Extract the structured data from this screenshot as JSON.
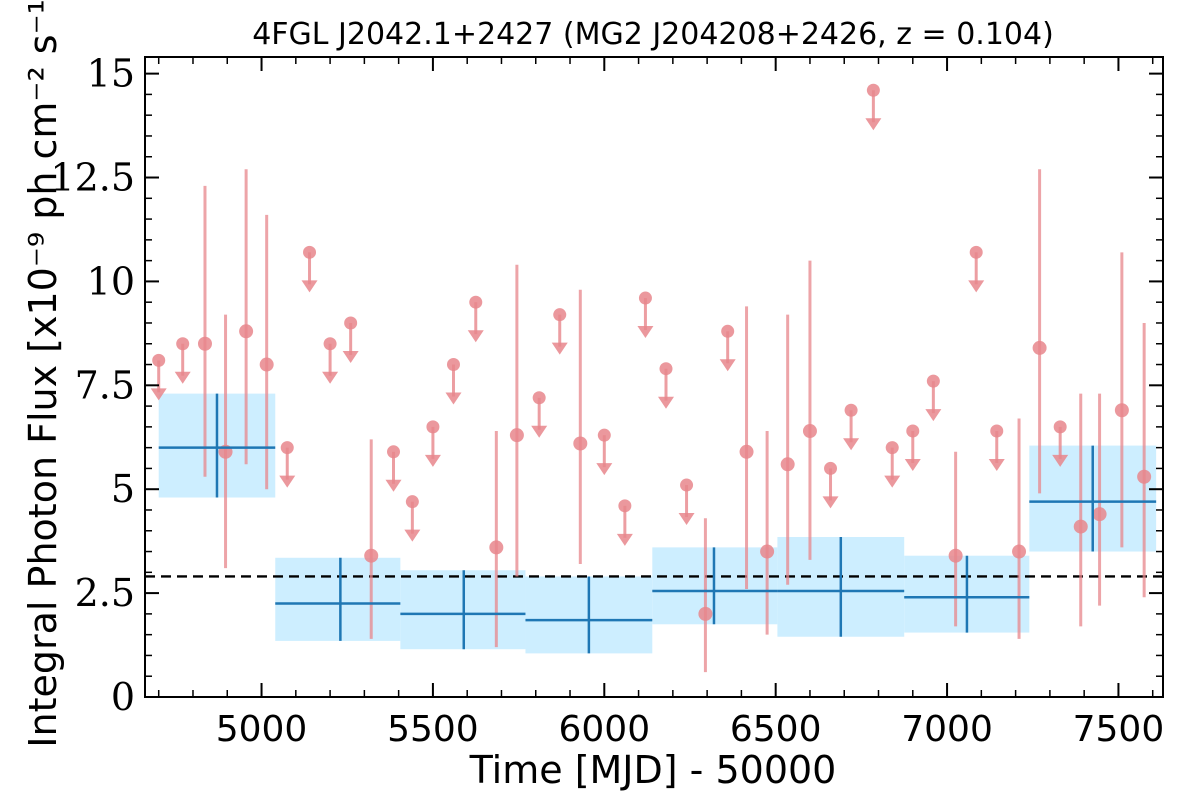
{
  "chart_data": {
    "type": "scatter",
    "title": "4FGL J2042.1+2427 (MG2 J204208+2426, z = 0.104)",
    "xlabel": "Time [MJD] - 50000",
    "ylabel": "Integral Photon Flux [x10⁻⁹ ph cm⁻² s⁻¹]",
    "xlim": [
      4660,
      7630
    ],
    "ylim": [
      0,
      15.4
    ],
    "x_ticks": [
      5000,
      5500,
      6000,
      6500,
      7000,
      7500
    ],
    "x_tick_labels": [
      "5000",
      "5500",
      "6000",
      "6500",
      "7000",
      "7500"
    ],
    "y_ticks": [
      0,
      2.5,
      5,
      7.5,
      10,
      12.5,
      15
    ],
    "y_tick_labels": [
      "0",
      "2.5",
      "5",
      "7.5",
      "10",
      "12.5",
      "15"
    ],
    "mean_flux": 2.9,
    "colors": {
      "points": "#e8868c",
      "bins_fill": "#cdeeff",
      "bins_line": "#1f77b4",
      "mean_line": "#000000"
    },
    "upper_limits": [
      {
        "x": 4700,
        "y": 8.1
      },
      {
        "x": 4770,
        "y": 8.5
      },
      {
        "x": 5075,
        "y": 6.0
      },
      {
        "x": 5140,
        "y": 10.7
      },
      {
        "x": 5200,
        "y": 8.5
      },
      {
        "x": 5260,
        "y": 9.0
      },
      {
        "x": 5385,
        "y": 5.9
      },
      {
        "x": 5440,
        "y": 4.7
      },
      {
        "x": 5500,
        "y": 6.5
      },
      {
        "x": 5560,
        "y": 8.0
      },
      {
        "x": 5625,
        "y": 9.5
      },
      {
        "x": 5810,
        "y": 7.2
      },
      {
        "x": 5870,
        "y": 9.2
      },
      {
        "x": 6000,
        "y": 6.3
      },
      {
        "x": 6060,
        "y": 4.6
      },
      {
        "x": 6120,
        "y": 9.6
      },
      {
        "x": 6180,
        "y": 7.9
      },
      {
        "x": 6240,
        "y": 5.1
      },
      {
        "x": 6360,
        "y": 8.8
      },
      {
        "x": 6660,
        "y": 5.5
      },
      {
        "x": 6720,
        "y": 6.9
      },
      {
        "x": 6785,
        "y": 14.6
      },
      {
        "x": 6840,
        "y": 6.0
      },
      {
        "x": 6900,
        "y": 6.4
      },
      {
        "x": 6960,
        "y": 7.6
      },
      {
        "x": 7085,
        "y": 10.7
      },
      {
        "x": 7145,
        "y": 6.4
      },
      {
        "x": 7330,
        "y": 6.5
      }
    ],
    "detections": [
      {
        "x": 4835,
        "y": 8.5,
        "lo": 5.3,
        "hi": 12.3
      },
      {
        "x": 4895,
        "y": 5.9,
        "lo": 3.1,
        "hi": 9.2
      },
      {
        "x": 4955,
        "y": 8.8,
        "lo": 5.6,
        "hi": 12.7
      },
      {
        "x": 5015,
        "y": 8.0,
        "lo": 5.0,
        "hi": 11.6
      },
      {
        "x": 5320,
        "y": 3.4,
        "lo": 1.4,
        "hi": 6.2
      },
      {
        "x": 5685,
        "y": 3.6,
        "lo": 1.2,
        "hi": 6.4
      },
      {
        "x": 5745,
        "y": 6.3,
        "lo": 2.9,
        "hi": 10.4
      },
      {
        "x": 5930,
        "y": 6.1,
        "lo": 3.2,
        "hi": 9.8
      },
      {
        "x": 6295,
        "y": 2.0,
        "lo": 0.6,
        "hi": 4.3
      },
      {
        "x": 6415,
        "y": 5.9,
        "lo": 2.6,
        "hi": 9.4
      },
      {
        "x": 6475,
        "y": 3.5,
        "lo": 1.5,
        "hi": 6.4
      },
      {
        "x": 6535,
        "y": 5.6,
        "lo": 2.7,
        "hi": 9.2
      },
      {
        "x": 6600,
        "y": 6.4,
        "lo": 3.3,
        "hi": 10.5
      },
      {
        "x": 7025,
        "y": 3.4,
        "lo": 1.7,
        "hi": 5.9
      },
      {
        "x": 7210,
        "y": 3.5,
        "lo": 1.4,
        "hi": 6.7
      },
      {
        "x": 7270,
        "y": 8.4,
        "lo": 4.9,
        "hi": 12.7
      },
      {
        "x": 7390,
        "y": 4.1,
        "lo": 1.7,
        "hi": 7.3
      },
      {
        "x": 7445,
        "y": 4.4,
        "lo": 2.2,
        "hi": 7.3
      },
      {
        "x": 7510,
        "y": 6.9,
        "lo": 3.6,
        "hi": 10.7
      },
      {
        "x": 7575,
        "y": 5.3,
        "lo": 2.4,
        "hi": 9.0
      }
    ],
    "bins": [
      {
        "x0": 4700,
        "x1": 5040,
        "xc": 4870,
        "y": 6.0,
        "lo": 4.8,
        "hi": 7.3
      },
      {
        "x0": 5040,
        "x1": 5405,
        "xc": 5230,
        "y": 2.25,
        "lo": 1.35,
        "hi": 3.35
      },
      {
        "x0": 5405,
        "x1": 5770,
        "xc": 5590,
        "y": 2.0,
        "lo": 1.15,
        "hi": 3.05
      },
      {
        "x0": 5770,
        "x1": 6140,
        "xc": 5955,
        "y": 1.85,
        "lo": 1.05,
        "hi": 2.9
      },
      {
        "x0": 6140,
        "x1": 6505,
        "xc": 6320,
        "y": 2.55,
        "lo": 1.75,
        "hi": 3.6
      },
      {
        "x0": 6505,
        "x1": 6875,
        "xc": 6690,
        "y": 2.55,
        "lo": 1.45,
        "hi": 3.85
      },
      {
        "x0": 6875,
        "x1": 7240,
        "xc": 7058,
        "y": 2.4,
        "lo": 1.55,
        "hi": 3.4
      },
      {
        "x0": 7240,
        "x1": 7610,
        "xc": 7425,
        "y": 4.7,
        "lo": 3.5,
        "hi": 6.05
      }
    ]
  }
}
